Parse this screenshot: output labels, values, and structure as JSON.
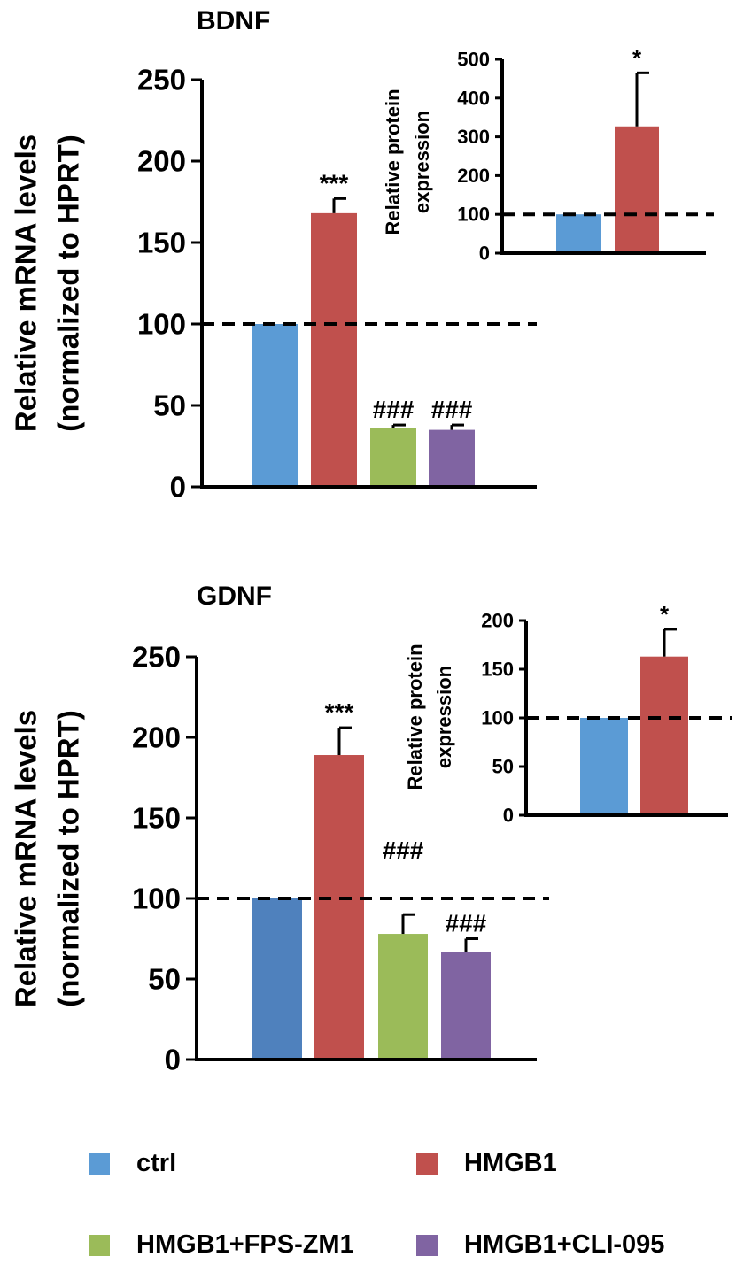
{
  "colors": {
    "ctrl": "#5b9bd5",
    "ctrl_gdnf": "#4f81bd",
    "hmgb1": "#c0504d",
    "fps": "#9bbb59",
    "cli": "#8064a2",
    "axis": "#000000"
  },
  "chart_data": [
    {
      "id": "bdnf_main",
      "type": "bar",
      "title": "BDNF",
      "ylabel_line1": "Relative mRNA levels",
      "ylabel_line2": "(normalized to HPRT)",
      "ylim": [
        0,
        250
      ],
      "yticks": [
        "0",
        "50",
        "100",
        "150",
        "200",
        "250"
      ],
      "reference_line": 100,
      "categories": [
        "ctrl",
        "HMGB1",
        "HMGB1+FPS-ZM1",
        "HMGB1+CLI-095"
      ],
      "values": [
        100,
        168,
        36,
        35
      ],
      "errors": [
        0,
        9,
        2,
        3
      ],
      "annotations": [
        "",
        "***",
        "###",
        "###"
      ]
    },
    {
      "id": "bdnf_inset",
      "type": "bar",
      "ylabel_line1": "Relative protein",
      "ylabel_line2": "expression",
      "ylim": [
        0,
        500
      ],
      "yticks": [
        "0",
        "100",
        "200",
        "300",
        "400",
        "500"
      ],
      "reference_line": 100,
      "categories": [
        "ctrl",
        "HMGB1"
      ],
      "values": [
        100,
        327
      ],
      "errors": [
        0,
        138
      ],
      "annotations": [
        "",
        "*"
      ]
    },
    {
      "id": "gdnf_main",
      "type": "bar",
      "title": "GDNF",
      "ylabel_line1": "Relative mRNA levels",
      "ylabel_line2": "(normalized to HPRT)",
      "ylim": [
        0,
        250
      ],
      "yticks": [
        "0",
        "50",
        "100",
        "150",
        "200",
        "250"
      ],
      "reference_line": 100,
      "categories": [
        "ctrl",
        "HMGB1",
        "HMGB1+FPS-ZM1",
        "HMGB1+CLI-095"
      ],
      "values": [
        100,
        189,
        78,
        67
      ],
      "errors": [
        0,
        17,
        12,
        8
      ],
      "annotations": [
        "",
        "***",
        "###",
        "###"
      ]
    },
    {
      "id": "gdnf_inset",
      "type": "bar",
      "ylabel_line1": "Relative protein",
      "ylabel_line2": "expression",
      "ylim": [
        0,
        200
      ],
      "yticks": [
        "0",
        "50",
        "100",
        "150",
        "200"
      ],
      "reference_line": 100,
      "categories": [
        "ctrl",
        "HMGB1"
      ],
      "values": [
        100,
        163
      ],
      "errors": [
        0,
        28
      ],
      "annotations": [
        "",
        "*"
      ]
    }
  ],
  "legend": {
    "items": [
      {
        "label": "ctrl",
        "color_key": "ctrl"
      },
      {
        "label": "HMGB1",
        "color_key": "hmgb1"
      },
      {
        "label": "HMGB1+FPS-ZM1",
        "color_key": "fps"
      },
      {
        "label": "HMGB1+CLI-095",
        "color_key": "cli"
      }
    ]
  }
}
